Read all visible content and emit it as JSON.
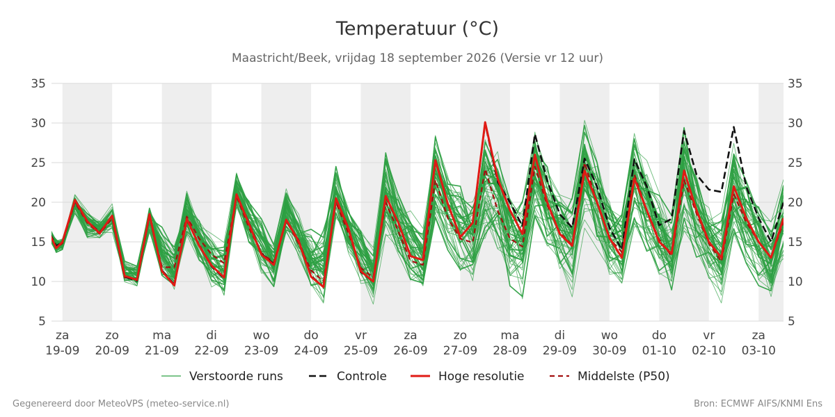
{
  "chart_data": {
    "type": "line",
    "title": "Temperatuur (°C)",
    "subtitle": "Maastricht/Beek, vrijdag 18 september 2026 (Versie vr 12 uur)",
    "ylim": [
      5,
      35
    ],
    "yticks": [
      5,
      10,
      15,
      20,
      25,
      30,
      35
    ],
    "xlim": [
      -0.22,
      14.5
    ],
    "x_ticks": [
      {
        "x": 0,
        "day": "za",
        "date": "19-09"
      },
      {
        "x": 1,
        "day": "zo",
        "date": "20-09"
      },
      {
        "x": 2,
        "day": "ma",
        "date": "21-09"
      },
      {
        "x": 3,
        "day": "di",
        "date": "22-09"
      },
      {
        "x": 4,
        "day": "wo",
        "date": "23-09"
      },
      {
        "x": 5,
        "day": "do",
        "date": "24-09"
      },
      {
        "x": 6,
        "day": "vr",
        "date": "25-09"
      },
      {
        "x": 7,
        "day": "za",
        "date": "26-09"
      },
      {
        "x": 8,
        "day": "zo",
        "date": "27-09"
      },
      {
        "x": 9,
        "day": "ma",
        "date": "28-09"
      },
      {
        "x": 10,
        "day": "di",
        "date": "29-09"
      },
      {
        "x": 11,
        "day": "wo",
        "date": "30-09"
      },
      {
        "x": 12,
        "day": "do",
        "date": "01-10"
      },
      {
        "x": 13,
        "day": "vr",
        "date": "02-10"
      },
      {
        "x": 14,
        "day": "za",
        "date": "03-10"
      }
    ],
    "shaded_bands": [
      [
        0,
        1
      ],
      [
        2,
        3
      ],
      [
        4,
        5
      ],
      [
        6,
        7
      ],
      [
        8,
        9
      ],
      [
        10,
        11
      ],
      [
        12,
        13
      ],
      [
        14,
        14.5
      ]
    ],
    "grid": true,
    "legend_position": "bottom",
    "x": [
      -0.25,
      -0.125,
      0.0,
      0.25,
      0.5,
      0.75,
      1.0,
      1.25,
      1.5,
      1.75,
      2.0,
      2.25,
      2.5,
      2.75,
      3.0,
      3.25,
      3.5,
      3.75,
      4.0,
      4.25,
      4.5,
      4.75,
      5.0,
      5.25,
      5.5,
      5.75,
      6.0,
      6.25,
      6.5,
      6.75,
      7.0,
      7.25,
      7.5,
      7.75,
      8.0,
      8.25,
      8.5,
      8.75,
      9.0,
      9.25,
      9.5,
      9.75,
      10.0,
      10.25,
      10.5,
      10.75,
      11.0,
      11.25,
      11.5,
      11.75,
      12.0,
      12.25,
      12.5,
      12.75,
      13.0,
      13.25,
      13.5,
      13.75,
      14.0,
      14.25,
      14.5
    ],
    "series": [
      {
        "name": "Controle",
        "color": "#111111",
        "dash": "10,5",
        "width": 2.6,
        "values": [
          16.0,
          14.5,
          14.9,
          20.2,
          17.6,
          16.2,
          18.2,
          10.6,
          10.1,
          18.4,
          11.4,
          9.6,
          17.8,
          14.6,
          11.9,
          10.4,
          20.9,
          17.4,
          13.5,
          12.2,
          17.7,
          15.2,
          10.7,
          9.3,
          20.4,
          16.8,
          11.2,
          10.0,
          20.7,
          17.4,
          13.2,
          12.7,
          25.3,
          19.8,
          15.6,
          17.4,
          30.0,
          22.6,
          20.0,
          17.0,
          28.6,
          22.7,
          18.5,
          16.8,
          25.5,
          22.0,
          16.8,
          14.0,
          25.4,
          22.0,
          17.1,
          17.9,
          29.0,
          23.5,
          21.6,
          21.3,
          29.5,
          22.0,
          18.0,
          15.0,
          20.0
        ]
      },
      {
        "name": "Hoge resolutie",
        "color": "#e01a14",
        "dash": "",
        "width": 3.0,
        "values": [
          15.9,
          14.2,
          15.0,
          20.3,
          17.6,
          16.1,
          18.3,
          10.7,
          10.2,
          18.5,
          11.3,
          9.5,
          17.9,
          14.5,
          12.0,
          10.5,
          21.0,
          17.3,
          13.4,
          12.1,
          17.8,
          15.1,
          10.6,
          9.3,
          20.5,
          16.7,
          11.3,
          10.0,
          20.8,
          17.5,
          13.2,
          12.7,
          25.3,
          19.8,
          15.6,
          17.4,
          30.1,
          23.0,
          19.0,
          16.0,
          26.0,
          20.0,
          16.0,
          14.5,
          24.0,
          20.0,
          15.5,
          13.0,
          23.0,
          19.0,
          15.0,
          13.5,
          24.0,
          19.0,
          15.0,
          13.0,
          22.0,
          18.0,
          15.0,
          13.0,
          18.0
        ]
      },
      {
        "name": "Middelste (P50)",
        "color": "#a30f0f",
        "dash": "7,5",
        "width": 2.2,
        "values": [
          15.7,
          14.3,
          14.8,
          20.0,
          17.4,
          16.0,
          18.0,
          10.5,
          10.3,
          18.2,
          11.8,
          11.8,
          18.2,
          15.4,
          13.4,
          12.3,
          20.8,
          16.8,
          13.6,
          12.4,
          17.7,
          14.8,
          11.4,
          10.0,
          20.0,
          16.1,
          11.7,
          10.5,
          20.0,
          16.4,
          12.6,
          12.1,
          22.8,
          18.0,
          15.4,
          14.9,
          24.2,
          19.0,
          15.4,
          14.4,
          24.5,
          19.6,
          16.2,
          14.6,
          25.0,
          20.0,
          15.4,
          13.7,
          23.5,
          19.0,
          15.3,
          13.2,
          22.8,
          18.6,
          14.8,
          12.5,
          21.0,
          17.5,
          15.0,
          13.0,
          17.5
        ]
      }
    ],
    "ensemble": {
      "name": "Verstoorde runs",
      "color": "#2ea043",
      "min": [
        15.0,
        13.6,
        13.7,
        18.5,
        15.4,
        15.4,
        15.9,
        9.8,
        9.2,
        16.0,
        10.2,
        7.8,
        15.7,
        12.5,
        9.0,
        7.9,
        19.0,
        14.2,
        10.9,
        9.0,
        15.8,
        12.5,
        8.5,
        7.0,
        17.6,
        13.0,
        9.3,
        6.7,
        15.0,
        13.0,
        9.8,
        6.8,
        17.0,
        13.5,
        10.5,
        9.3,
        13.8,
        13.5,
        9.0,
        7.6,
        17.5,
        14.0,
        11.0,
        7.9,
        16.5,
        13.0,
        10.0,
        8.7,
        16.0,
        13.0,
        10.0,
        7.7,
        15.5,
        12.0,
        9.0,
        6.4,
        14.5,
        11.5,
        9.0,
        7.0,
        12.0
      ],
      "max": [
        16.9,
        15.5,
        15.6,
        21.1,
        19.2,
        17.7,
        20.0,
        12.8,
        12.2,
        19.6,
        17.1,
        15.0,
        21.9,
        18.2,
        16.3,
        15.3,
        24.2,
        21.0,
        19.2,
        15.6,
        22.2,
        18.8,
        17.3,
        17.0,
        25.1,
        20.5,
        17.5,
        14.6,
        27.4,
        21.9,
        20.2,
        17.8,
        29.4,
        25.5,
        23.2,
        21.0,
        30.8,
        27.0,
        22.5,
        21.0,
        30.2,
        26.0,
        22.0,
        21.5,
        30.7,
        26.0,
        22.0,
        20.0,
        30.2,
        26.0,
        22.5,
        19.0,
        30.2,
        25.0,
        21.0,
        19.5,
        28.5,
        24.0,
        20.0,
        18.0,
        24.0
      ],
      "runs": 50
    },
    "legend": [
      "Verstoorde runs",
      "Controle",
      "Hoge resolutie",
      "Middelste (P50)"
    ]
  },
  "footer": {
    "left": "Gegenereerd door MeteoVPS (meteo-service.nl)",
    "right": "Bron: ECMWF AIFS/KNMI Ens"
  },
  "colors": {
    "band": "#eeeeee",
    "grid": "#d9d9d9"
  }
}
